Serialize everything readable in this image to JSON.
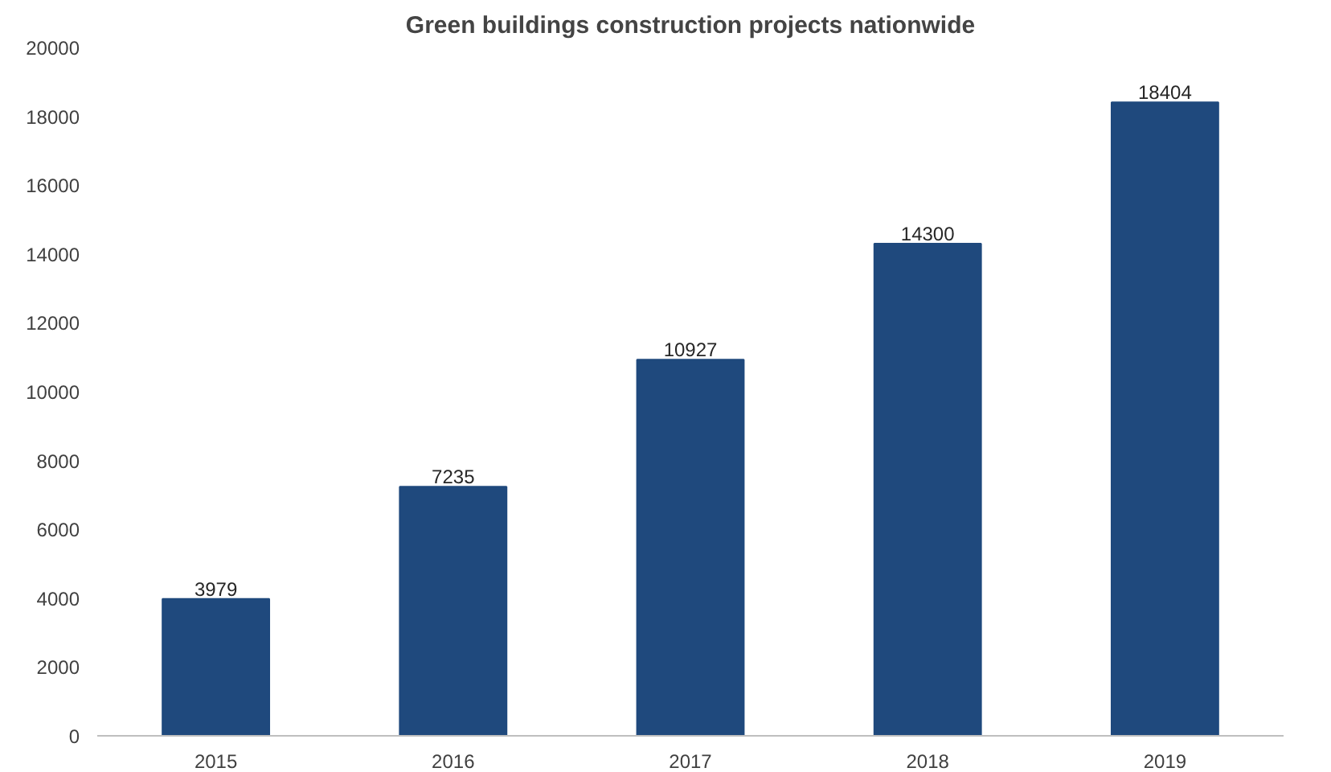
{
  "chart_data": {
    "type": "bar",
    "title": "Green buildings construction projects nationwide",
    "categories": [
      "2015",
      "2016",
      "2017",
      "2018",
      "2019"
    ],
    "values": [
      3979,
      7235,
      10927,
      14300,
      18404
    ],
    "color": "#1f497d",
    "ylim": [
      0,
      20000
    ],
    "yticks": [
      0,
      2000,
      4000,
      6000,
      8000,
      10000,
      12000,
      14000,
      16000,
      18000,
      20000
    ],
    "data_labels": true,
    "grid": false
  }
}
